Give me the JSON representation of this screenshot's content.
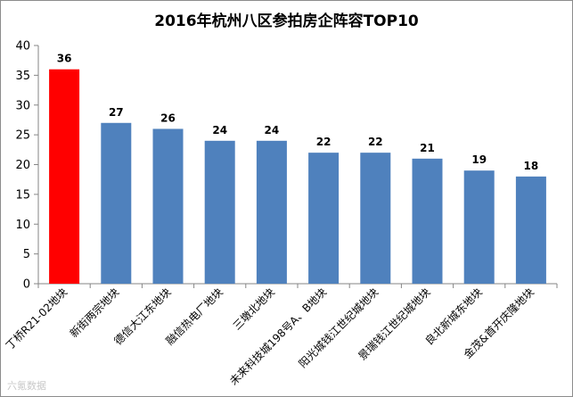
{
  "chart_data": {
    "type": "bar",
    "title": "2016年杭州八区参拍房企阵容TOP10",
    "categories": [
      "丁桥R21-02地块",
      "新街两宗地块",
      "德信大江东地块",
      "融信热电厂地块",
      "三墩北地块",
      "未来科技城198号A、B地块",
      "阳光城钱江世纪城地块",
      "景瑞钱江世纪城地块",
      "良北新城东地块",
      "金茂&首开庆隆地块"
    ],
    "values": [
      36,
      27,
      26,
      24,
      24,
      22,
      22,
      21,
      19,
      18
    ],
    "highlight_index": 0,
    "colors": {
      "highlight": "#ff0000",
      "bar": "#4f81bd",
      "axis": "#868686",
      "text": "#000000"
    },
    "ylim": [
      0,
      40
    ],
    "yticks": [
      0,
      5,
      10,
      15,
      20,
      25,
      30,
      35,
      40
    ],
    "grid": false,
    "legend": "none",
    "xlabel": "",
    "ylabel": ""
  },
  "watermark": "六氪数据"
}
